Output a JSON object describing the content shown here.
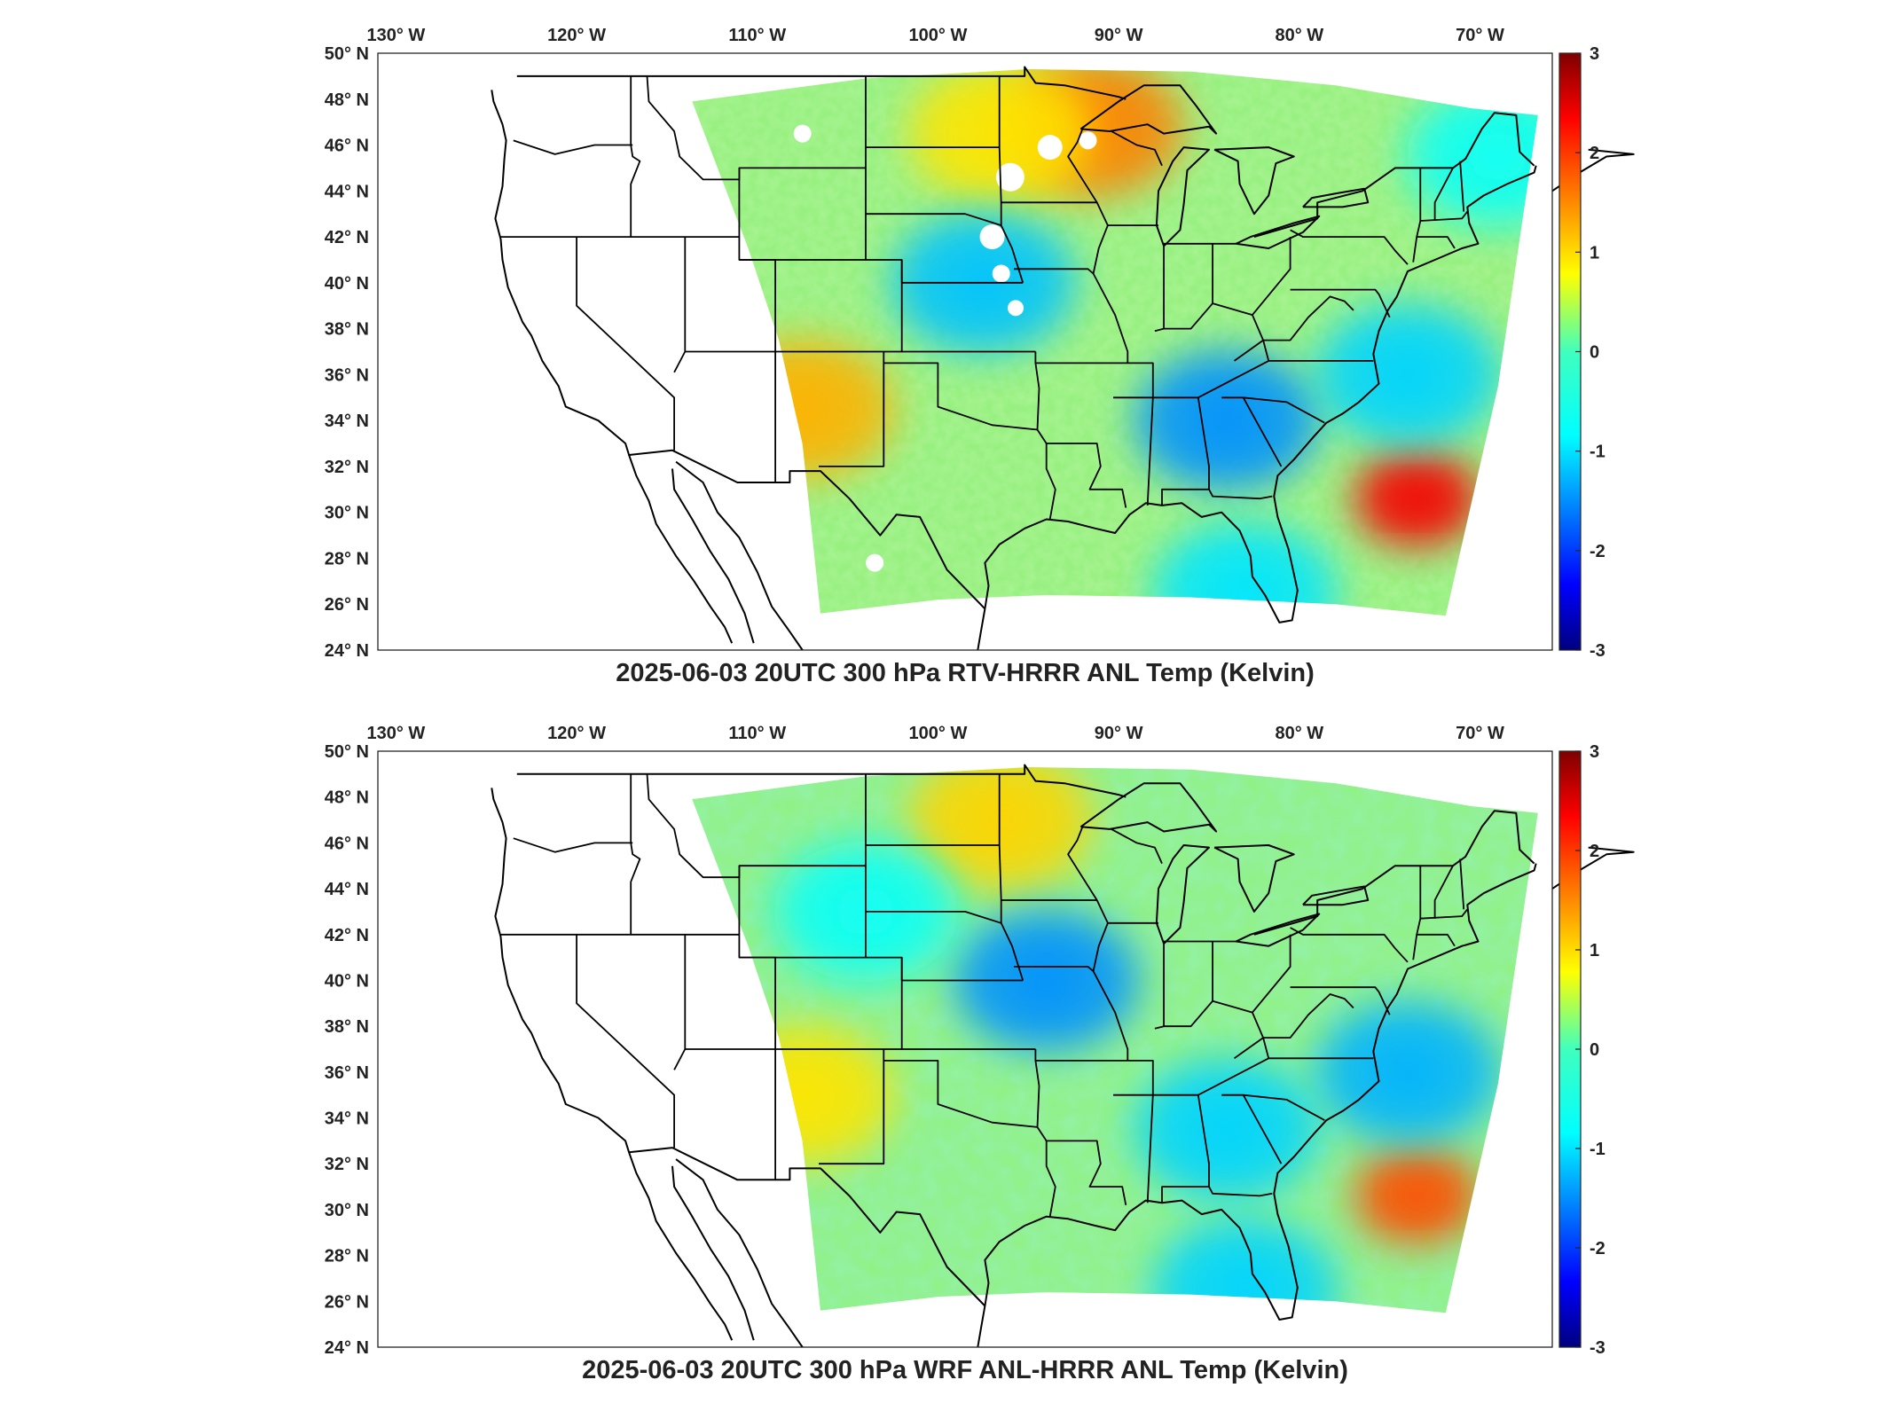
{
  "chart_data": [
    {
      "type": "heatmap",
      "title": "2025-06-03 20UTC 300 hPa RTV-HRRR ANL Temp (Kelvin)",
      "x_ticks": [
        "130° W",
        "120° W",
        "110° W",
        "100° W",
        "90° W",
        "80° W",
        "70° W"
      ],
      "x_values": [
        -130,
        -120,
        -110,
        -100,
        -90,
        -80,
        -70
      ],
      "y_ticks": [
        "50° N",
        "48° N",
        "46° N",
        "44° N",
        "42° N",
        "40° N",
        "38° N",
        "36° N",
        "34° N",
        "32° N",
        "30° N",
        "28° N",
        "26° N",
        "24° N"
      ],
      "y_values": [
        50,
        48,
        46,
        44,
        42,
        40,
        38,
        36,
        34,
        32,
        30,
        28,
        26,
        24
      ],
      "xlim": [
        -131,
        -66
      ],
      "ylim": [
        24,
        50
      ],
      "colorbar": {
        "ticks": [
          "3",
          "2",
          "1",
          "0",
          "-1",
          "-2",
          "-3"
        ],
        "range": [
          -3,
          3
        ],
        "colormap": "jet"
      },
      "features": [
        {
          "name": "warm anomaly Atlantic",
          "lon": -73.5,
          "lat": 30.6,
          "value": 2.3
        },
        {
          "name": "warm anomaly Lake Superior",
          "lon": -91.5,
          "lat": 46.8,
          "value": 1.5
        },
        {
          "name": "warm anomaly New Mexico",
          "lon": -107.5,
          "lat": 34.5,
          "value": 1.2
        },
        {
          "name": "warm anomaly Dakotas",
          "lon": -96.5,
          "lat": 46.5,
          "value": 0.9
        },
        {
          "name": "cool anomaly Georgia",
          "lon": -84.0,
          "lat": 34.0,
          "value": -1.4
        },
        {
          "name": "cool anomaly Kansas",
          "lon": -97.5,
          "lat": 40.0,
          "value": -1.1
        },
        {
          "name": "cool anomaly Atlantic",
          "lon": -74.0,
          "lat": 36.0,
          "value": -1.0
        },
        {
          "name": "cool anomaly Gulf",
          "lon": -83.0,
          "lat": 26.5,
          "value": -0.9
        },
        {
          "name": "cool anomaly New England",
          "lon": -69.0,
          "lat": 45.5,
          "value": -0.7
        }
      ],
      "missing_data": true
    },
    {
      "type": "heatmap",
      "title": "2025-06-03 20UTC 300 hPa WRF ANL-HRRR ANL Temp (Kelvin)",
      "x_ticks": [
        "130° W",
        "120° W",
        "110° W",
        "100° W",
        "90° W",
        "80° W",
        "70° W"
      ],
      "x_values": [
        -130,
        -120,
        -110,
        -100,
        -90,
        -80,
        -70
      ],
      "y_ticks": [
        "50° N",
        "48° N",
        "46° N",
        "44° N",
        "42° N",
        "40° N",
        "38° N",
        "36° N",
        "34° N",
        "32° N",
        "30° N",
        "28° N",
        "26° N",
        "24° N"
      ],
      "y_values": [
        50,
        48,
        46,
        44,
        42,
        40,
        38,
        36,
        34,
        32,
        30,
        28,
        26,
        24
      ],
      "xlim": [
        -131,
        -66
      ],
      "ylim": [
        24,
        50
      ],
      "colorbar": {
        "ticks": [
          "3",
          "2",
          "1",
          "0",
          "-1",
          "-2",
          "-3"
        ],
        "range": [
          -3,
          3
        ],
        "colormap": "jet"
      },
      "features": [
        {
          "name": "warm anomaly Atlantic",
          "lon": -73.5,
          "lat": 30.6,
          "value": 1.8
        },
        {
          "name": "warm anomaly Dakotas",
          "lon": -96.5,
          "lat": 47.0,
          "value": 1.0
        },
        {
          "name": "warm anomaly New Mexico",
          "lon": -107.5,
          "lat": 35.0,
          "value": 0.9
        },
        {
          "name": "cool anomaly Missouri",
          "lon": -94.0,
          "lat": 40.0,
          "value": -1.4
        },
        {
          "name": "cool anomaly Atlantic",
          "lon": -74.0,
          "lat": 36.0,
          "value": -1.2
        },
        {
          "name": "cool anomaly Georgia",
          "lon": -84.0,
          "lat": 33.5,
          "value": -1.0
        },
        {
          "name": "cool anomaly Gulf",
          "lon": -83.0,
          "lat": 26.5,
          "value": -1.0
        },
        {
          "name": "cool anomaly Wyoming",
          "lon": -104.0,
          "lat": 43.0,
          "value": -0.7
        }
      ],
      "missing_data": false
    }
  ]
}
